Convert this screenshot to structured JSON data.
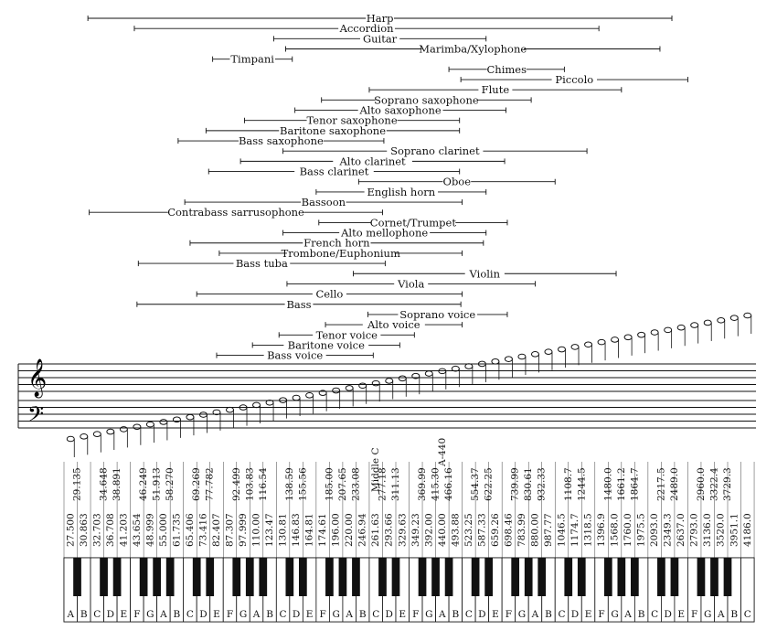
{
  "chart_data": {
    "type": "range-diagram",
    "markers": {
      "middle_c": "Middle C",
      "a440": "A-440"
    },
    "notes": [
      "A",
      "B",
      "C",
      "D",
      "E",
      "F",
      "G",
      "A",
      "B",
      "C",
      "D",
      "E",
      "F",
      "G",
      "A",
      "B",
      "C",
      "D",
      "E",
      "F",
      "G",
      "A",
      "B",
      "C",
      "D",
      "E",
      "F",
      "G",
      "A",
      "B",
      "C",
      "D",
      "E",
      "F",
      "G",
      "A",
      "B",
      "C",
      "D",
      "E",
      "F",
      "G",
      "A",
      "B",
      "C",
      "D",
      "E",
      "F",
      "G",
      "A",
      "B",
      "C"
    ],
    "white_freqs": [
      "27.500",
      "30.863",
      "32.703",
      "36.708",
      "41.203",
      "43.654",
      "48.999",
      "55.000",
      "61.735",
      "65.406",
      "73.416",
      "82.407",
      "87.307",
      "97.999",
      "110.00",
      "123.47",
      "130.81",
      "146.83",
      "164.81",
      "174.61",
      "196.00",
      "220.00",
      "246.94",
      "261.63",
      "293.66",
      "329.63",
      "349.23",
      "392.00",
      "440.00",
      "493.88",
      "523.25",
      "587.33",
      "659.26",
      "698.46",
      "783.99",
      "880.00",
      "987.77",
      "1046.5",
      "1174.7",
      "1318.5",
      "1396.9",
      "1568.0",
      "1760.0",
      "1975.5",
      "2093.0",
      "2349.3",
      "2637.0",
      "2793.0",
      "3136.0",
      "3520.0",
      "3951.1",
      "4186.0"
    ],
    "black_keys": [
      {
        "after": 0,
        "freq": "29.135"
      },
      {
        "after": 2,
        "freq": "34.648"
      },
      {
        "after": 3,
        "freq": "38.891"
      },
      {
        "after": 5,
        "freq": "46.249"
      },
      {
        "after": 6,
        "freq": "51.913"
      },
      {
        "after": 7,
        "freq": "58.270"
      },
      {
        "after": 9,
        "freq": "69.269"
      },
      {
        "after": 10,
        "freq": "77.782"
      },
      {
        "after": 12,
        "freq": "92.499"
      },
      {
        "after": 13,
        "freq": "103.83"
      },
      {
        "after": 14,
        "freq": "116.54"
      },
      {
        "after": 16,
        "freq": "138.59"
      },
      {
        "after": 17,
        "freq": "155.56"
      },
      {
        "after": 19,
        "freq": "185.00"
      },
      {
        "after": 20,
        "freq": "207.65"
      },
      {
        "after": 21,
        "freq": "233.08"
      },
      {
        "after": 23,
        "freq": "277.18"
      },
      {
        "after": 24,
        "freq": "311.13"
      },
      {
        "after": 26,
        "freq": "369.99"
      },
      {
        "after": 27,
        "freq": "415.30"
      },
      {
        "after": 28,
        "freq": "466.16"
      },
      {
        "after": 30,
        "freq": "554.37"
      },
      {
        "after": 31,
        "freq": "622.25"
      },
      {
        "after": 33,
        "freq": "739.99"
      },
      {
        "after": 34,
        "freq": "830.61"
      },
      {
        "after": 35,
        "freq": "932.33"
      },
      {
        "after": 37,
        "freq": "1108.7"
      },
      {
        "after": 38,
        "freq": "1244.5"
      },
      {
        "after": 40,
        "freq": "1480.0"
      },
      {
        "after": 41,
        "freq": "1661.2"
      },
      {
        "after": 42,
        "freq": "1864.7"
      },
      {
        "after": 44,
        "freq": "2217.5"
      },
      {
        "after": 45,
        "freq": "2489.0"
      },
      {
        "after": 47,
        "freq": "2960.0"
      },
      {
        "after": 48,
        "freq": "3322.4"
      },
      {
        "after": 49,
        "freq": "3729.3"
      }
    ],
    "instruments": [
      {
        "name": "Harp",
        "from_key": 1.8,
        "to_key": 45.8
      },
      {
        "name": "Accordion",
        "from_key": 5.3,
        "to_key": 40.3
      },
      {
        "name": "Guitar",
        "from_key": 15.8,
        "to_key": 31.8
      },
      {
        "name": "Marimba/Xylophone",
        "from_key": 16.7,
        "to_key": 44.9
      },
      {
        "name": "Timpani",
        "from_key": 11.2,
        "to_key": 17.2
      },
      {
        "name": "Chimes",
        "from_key": 29.0,
        "to_key": 37.7
      },
      {
        "name": "Piccolo",
        "from_key": 29.9,
        "to_key": 47.0
      },
      {
        "name": "Flute",
        "from_key": 23.0,
        "to_key": 42.0
      },
      {
        "name": "Soprano saxophone",
        "from_key": 19.4,
        "to_key": 35.2
      },
      {
        "name": "Alto saxophone",
        "from_key": 17.4,
        "to_key": 33.3
      },
      {
        "name": "Tenor saxophone",
        "from_key": 13.6,
        "to_key": 29.8
      },
      {
        "name": "Baritone saxophone",
        "from_key": 10.7,
        "to_key": 29.8
      },
      {
        "name": "Bass saxophone",
        "from_key": 8.6,
        "to_key": 24.1
      },
      {
        "name": "Soprano clarinet",
        "from_key": 16.5,
        "to_key": 39.4
      },
      {
        "name": "Alto clarinet",
        "from_key": 13.3,
        "to_key": 33.2
      },
      {
        "name": "Bass clarinet",
        "from_key": 10.9,
        "to_key": 29.8
      },
      {
        "name": "Oboe",
        "from_key": 22.2,
        "to_key": 37.0
      },
      {
        "name": "English horn",
        "from_key": 19.0,
        "to_key": 31.8
      },
      {
        "name": "Bassoon",
        "from_key": 9.1,
        "to_key": 30.0
      },
      {
        "name": "Contrabass sarrusophone",
        "from_key": 1.9,
        "to_key": 24.0
      },
      {
        "name": "Cornet/Trumpet",
        "from_key": 19.2,
        "to_key": 33.4
      },
      {
        "name": "Alto mellophone",
        "from_key": 16.5,
        "to_key": 31.8
      },
      {
        "name": "French horn",
        "from_key": 9.5,
        "to_key": 31.6
      },
      {
        "name": "Trombone/Euphonium",
        "from_key": 11.7,
        "to_key": 30.0
      },
      {
        "name": "Bass tuba",
        "from_key": 5.6,
        "to_key": 24.2
      },
      {
        "name": "Violin",
        "from_key": 21.8,
        "to_key": 41.6
      },
      {
        "name": "Viola",
        "from_key": 16.8,
        "to_key": 35.5
      },
      {
        "name": "Cello",
        "from_key": 10.0,
        "to_key": 30.0
      },
      {
        "name": "Bass",
        "from_key": 5.5,
        "to_key": 29.9
      },
      {
        "name": "Soprano voice",
        "from_key": 22.9,
        "to_key": 33.4
      },
      {
        "name": "Alto voice",
        "from_key": 19.7,
        "to_key": 30.0
      },
      {
        "name": "Tenor voice",
        "from_key": 16.2,
        "to_key": 26.4
      },
      {
        "name": "Baritone voice",
        "from_key": 14.2,
        "to_key": 25.3
      },
      {
        "name": "Bass voice",
        "from_key": 11.5,
        "to_key": 23.3
      }
    ]
  }
}
